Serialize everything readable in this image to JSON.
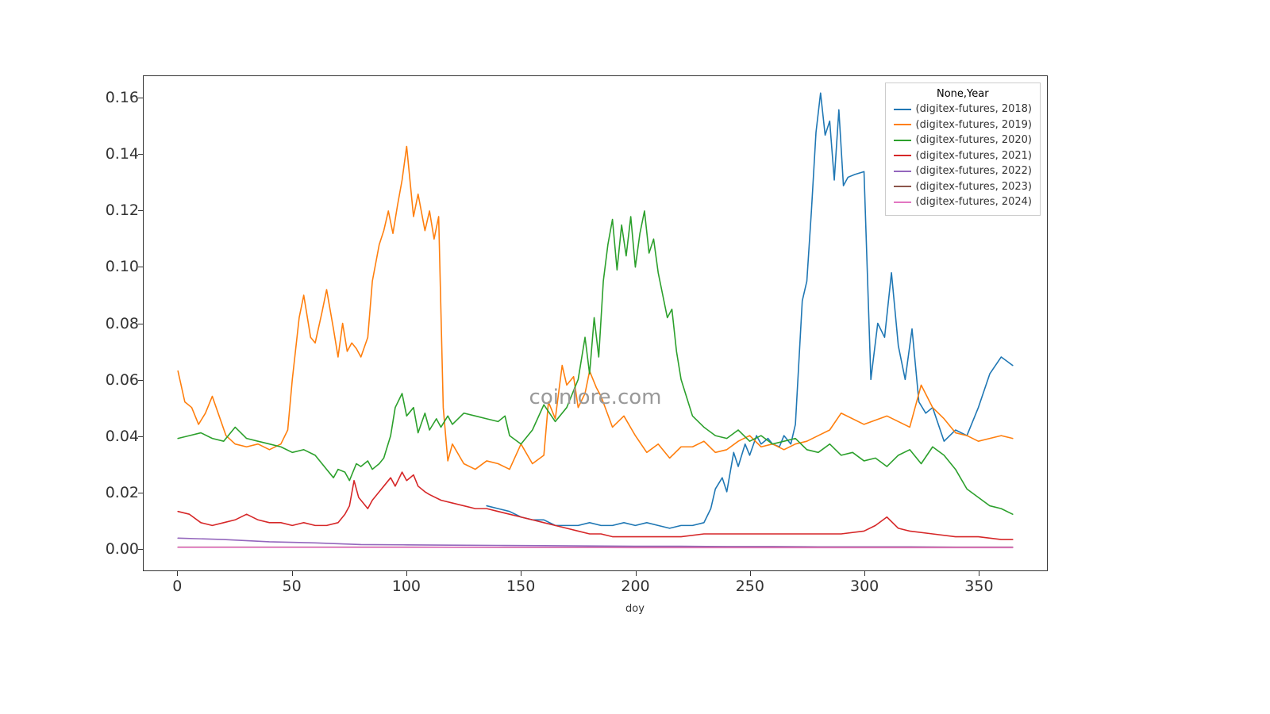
{
  "chart": {
    "type": "line",
    "xlabel": "doy",
    "xlabel_fontsize": 13,
    "tick_fontsize": 19,
    "background_color": "#ffffff",
    "border_color": "#333333",
    "line_width": 1.6,
    "xlim": [
      -15,
      380
    ],
    "ylim": [
      -0.008,
      0.168
    ],
    "xticks": [
      0,
      50,
      100,
      150,
      200,
      250,
      300,
      350
    ],
    "yticks": [
      0.0,
      0.02,
      0.04,
      0.06,
      0.08,
      0.1,
      0.12,
      0.14,
      0.16
    ],
    "ytick_labels": [
      "0.00",
      "0.02",
      "0.04",
      "0.06",
      "0.08",
      "0.10",
      "0.12",
      "0.14",
      "0.16"
    ],
    "watermark": "coinlore.com",
    "watermark_color": "#999999",
    "watermark_fontsize": 26,
    "legend": {
      "title": "None,Year",
      "position": "upper right",
      "fontsize": 13,
      "items": [
        {
          "label": "(digitex-futures, 2018)",
          "color": "#1f77b4"
        },
        {
          "label": "(digitex-futures, 2019)",
          "color": "#ff7f0e"
        },
        {
          "label": "(digitex-futures, 2020)",
          "color": "#2ca02c"
        },
        {
          "label": "(digitex-futures, 2021)",
          "color": "#d62728"
        },
        {
          "label": "(digitex-futures, 2022)",
          "color": "#9467bd"
        },
        {
          "label": "(digitex-futures, 2023)",
          "color": "#8c564b"
        },
        {
          "label": "(digitex-futures, 2024)",
          "color": "#e377c2"
        }
      ]
    },
    "series": [
      {
        "name": "2018",
        "color": "#1f77b4",
        "x": [
          135,
          140,
          145,
          150,
          155,
          160,
          165,
          170,
          175,
          180,
          185,
          190,
          195,
          200,
          205,
          210,
          215,
          220,
          225,
          230,
          233,
          235,
          238,
          240,
          243,
          245,
          248,
          250,
          253,
          255,
          258,
          260,
          263,
          265,
          268,
          270,
          273,
          275,
          277,
          279,
          281,
          283,
          285,
          287,
          289,
          291,
          293,
          296,
          300,
          303,
          306,
          309,
          312,
          315,
          318,
          321,
          324,
          327,
          330,
          335,
          340,
          345,
          350,
          355,
          360,
          365
        ],
        "y": [
          0.015,
          0.014,
          0.013,
          0.011,
          0.01,
          0.01,
          0.008,
          0.008,
          0.008,
          0.009,
          0.008,
          0.008,
          0.009,
          0.008,
          0.009,
          0.008,
          0.007,
          0.008,
          0.008,
          0.009,
          0.014,
          0.021,
          0.025,
          0.02,
          0.034,
          0.029,
          0.037,
          0.033,
          0.04,
          0.037,
          0.039,
          0.037,
          0.036,
          0.04,
          0.037,
          0.044,
          0.088,
          0.095,
          0.12,
          0.148,
          0.162,
          0.147,
          0.152,
          0.131,
          0.156,
          0.129,
          0.132,
          0.133,
          0.134,
          0.06,
          0.08,
          0.075,
          0.098,
          0.072,
          0.06,
          0.078,
          0.052,
          0.048,
          0.05,
          0.038,
          0.042,
          0.04,
          0.05,
          0.062,
          0.068,
          0.065
        ]
      },
      {
        "name": "2019",
        "color": "#ff7f0e",
        "x": [
          0,
          3,
          6,
          9,
          12,
          15,
          18,
          21,
          25,
          30,
          35,
          40,
          45,
          48,
          50,
          53,
          55,
          58,
          60,
          63,
          65,
          68,
          70,
          72,
          74,
          76,
          78,
          80,
          83,
          85,
          88,
          90,
          92,
          94,
          96,
          98,
          100,
          103,
          105,
          108,
          110,
          112,
          114,
          116,
          118,
          120,
          125,
          130,
          135,
          140,
          145,
          150,
          155,
          160,
          162,
          165,
          168,
          170,
          173,
          175,
          178,
          180,
          183,
          185,
          190,
          195,
          200,
          205,
          210,
          215,
          220,
          225,
          230,
          235,
          240,
          245,
          250,
          255,
          260,
          265,
          270,
          275,
          280,
          285,
          290,
          300,
          310,
          320,
          325,
          330,
          335,
          340,
          345,
          350,
          355,
          360,
          365
        ],
        "y": [
          0.063,
          0.052,
          0.05,
          0.044,
          0.048,
          0.054,
          0.047,
          0.04,
          0.037,
          0.036,
          0.037,
          0.035,
          0.037,
          0.042,
          0.06,
          0.082,
          0.09,
          0.075,
          0.073,
          0.084,
          0.092,
          0.078,
          0.068,
          0.08,
          0.07,
          0.073,
          0.071,
          0.068,
          0.075,
          0.095,
          0.108,
          0.113,
          0.12,
          0.112,
          0.122,
          0.131,
          0.143,
          0.118,
          0.126,
          0.113,
          0.12,
          0.11,
          0.118,
          0.05,
          0.031,
          0.037,
          0.03,
          0.028,
          0.031,
          0.03,
          0.028,
          0.037,
          0.03,
          0.033,
          0.052,
          0.046,
          0.065,
          0.058,
          0.061,
          0.05,
          0.055,
          0.063,
          0.057,
          0.054,
          0.043,
          0.047,
          0.04,
          0.034,
          0.037,
          0.032,
          0.036,
          0.036,
          0.038,
          0.034,
          0.035,
          0.038,
          0.04,
          0.036,
          0.037,
          0.035,
          0.037,
          0.038,
          0.04,
          0.042,
          0.048,
          0.044,
          0.047,
          0.043,
          0.058,
          0.05,
          0.046,
          0.041,
          0.04,
          0.038,
          0.039,
          0.04,
          0.039
        ]
      },
      {
        "name": "2020",
        "color": "#2ca02c",
        "x": [
          0,
          5,
          10,
          15,
          20,
          25,
          30,
          35,
          40,
          45,
          50,
          55,
          60,
          65,
          68,
          70,
          73,
          75,
          78,
          80,
          83,
          85,
          88,
          90,
          93,
          95,
          98,
          100,
          103,
          105,
          108,
          110,
          113,
          115,
          118,
          120,
          125,
          130,
          135,
          140,
          143,
          145,
          150,
          155,
          160,
          165,
          170,
          175,
          178,
          180,
          182,
          184,
          186,
          188,
          190,
          192,
          194,
          196,
          198,
          200,
          202,
          204,
          206,
          208,
          210,
          212,
          214,
          216,
          218,
          220,
          225,
          230,
          235,
          240,
          245,
          250,
          255,
          260,
          265,
          270,
          275,
          280,
          285,
          290,
          295,
          300,
          305,
          310,
          315,
          320,
          325,
          330,
          335,
          340,
          345,
          350,
          355,
          360,
          365
        ],
        "y": [
          0.039,
          0.04,
          0.041,
          0.039,
          0.038,
          0.043,
          0.039,
          0.038,
          0.037,
          0.036,
          0.034,
          0.035,
          0.033,
          0.028,
          0.025,
          0.028,
          0.027,
          0.024,
          0.03,
          0.029,
          0.031,
          0.028,
          0.03,
          0.032,
          0.04,
          0.05,
          0.055,
          0.047,
          0.05,
          0.041,
          0.048,
          0.042,
          0.046,
          0.043,
          0.047,
          0.044,
          0.048,
          0.047,
          0.046,
          0.045,
          0.047,
          0.04,
          0.037,
          0.042,
          0.051,
          0.045,
          0.05,
          0.06,
          0.075,
          0.062,
          0.082,
          0.068,
          0.095,
          0.108,
          0.117,
          0.099,
          0.115,
          0.104,
          0.118,
          0.1,
          0.112,
          0.12,
          0.105,
          0.11,
          0.098,
          0.09,
          0.082,
          0.085,
          0.07,
          0.06,
          0.047,
          0.043,
          0.04,
          0.039,
          0.042,
          0.038,
          0.04,
          0.037,
          0.038,
          0.039,
          0.035,
          0.034,
          0.037,
          0.033,
          0.034,
          0.031,
          0.032,
          0.029,
          0.033,
          0.035,
          0.03,
          0.036,
          0.033,
          0.028,
          0.021,
          0.018,
          0.015,
          0.014,
          0.012
        ]
      },
      {
        "name": "2021",
        "color": "#d62728",
        "x": [
          0,
          5,
          10,
          15,
          20,
          25,
          30,
          35,
          40,
          45,
          50,
          55,
          60,
          65,
          70,
          73,
          75,
          77,
          79,
          81,
          83,
          85,
          88,
          90,
          93,
          95,
          98,
          100,
          103,
          105,
          108,
          110,
          115,
          120,
          125,
          130,
          135,
          140,
          145,
          150,
          155,
          160,
          165,
          170,
          175,
          180,
          185,
          190,
          195,
          200,
          210,
          220,
          230,
          240,
          250,
          260,
          270,
          280,
          290,
          300,
          305,
          310,
          315,
          320,
          330,
          340,
          350,
          360,
          365
        ],
        "y": [
          0.013,
          0.012,
          0.009,
          0.008,
          0.009,
          0.01,
          0.012,
          0.01,
          0.009,
          0.009,
          0.008,
          0.009,
          0.008,
          0.008,
          0.009,
          0.012,
          0.015,
          0.024,
          0.018,
          0.016,
          0.014,
          0.017,
          0.02,
          0.022,
          0.025,
          0.022,
          0.027,
          0.024,
          0.026,
          0.022,
          0.02,
          0.019,
          0.017,
          0.016,
          0.015,
          0.014,
          0.014,
          0.013,
          0.012,
          0.011,
          0.01,
          0.009,
          0.008,
          0.007,
          0.006,
          0.005,
          0.005,
          0.004,
          0.004,
          0.004,
          0.004,
          0.004,
          0.005,
          0.005,
          0.005,
          0.005,
          0.005,
          0.005,
          0.005,
          0.006,
          0.008,
          0.011,
          0.007,
          0.006,
          0.005,
          0.004,
          0.004,
          0.003,
          0.003
        ]
      },
      {
        "name": "2022",
        "color": "#9467bd",
        "x": [
          0,
          20,
          40,
          60,
          80,
          100,
          120,
          140,
          160,
          180,
          200,
          220,
          240,
          260,
          280,
          300,
          320,
          340,
          360,
          365
        ],
        "y": [
          0.0035,
          0.003,
          0.0022,
          0.0018,
          0.0012,
          0.0011,
          0.001,
          0.0009,
          0.0008,
          0.0007,
          0.0006,
          0.0006,
          0.0005,
          0.0005,
          0.0004,
          0.0004,
          0.0004,
          0.0003,
          0.0003,
          0.0003
        ]
      },
      {
        "name": "2023",
        "color": "#8c564b",
        "x": [
          0,
          50,
          100,
          150,
          200,
          250,
          300,
          350,
          365
        ],
        "y": [
          0.0003,
          0.0003,
          0.0003,
          0.0002,
          0.0002,
          0.0002,
          0.0002,
          0.0002,
          0.0002
        ]
      },
      {
        "name": "2024",
        "color": "#e377c2",
        "x": [
          0,
          50,
          100,
          150,
          200,
          250,
          300,
          350,
          365
        ],
        "y": [
          0.0002,
          0.0002,
          0.0002,
          0.0002,
          0.0001,
          0.0001,
          0.0001,
          0.0001,
          0.0001
        ]
      }
    ]
  }
}
